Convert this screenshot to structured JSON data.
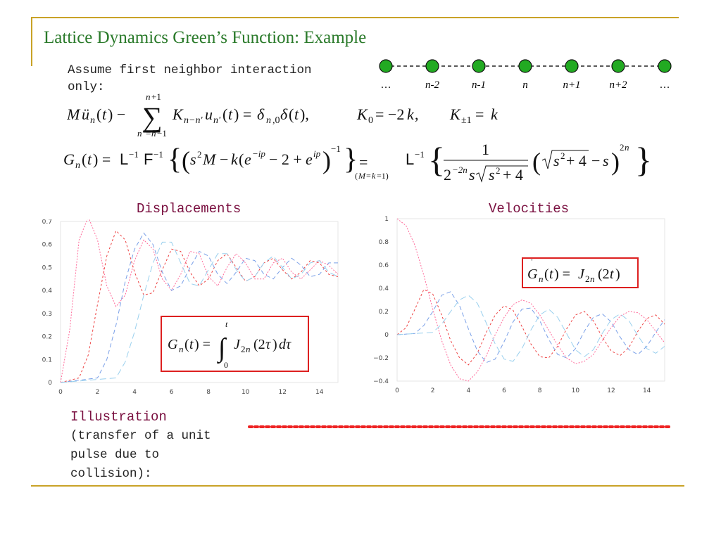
{
  "title": "Lattice Dynamics Green’s Function: Example",
  "assumption": {
    "line1": "Assume first neighbor interaction",
    "line2": "only:"
  },
  "chain": {
    "labels": [
      "…",
      "n-2",
      "n-1",
      "n",
      "n+1",
      "n+2",
      "…"
    ],
    "node_color": "#22aa22"
  },
  "displacements": {
    "heading": "Displacements",
    "chart_data": {
      "type": "line",
      "xlim": [
        0,
        15
      ],
      "ylim": [
        0,
        0.7
      ],
      "x_ticks": [
        "0",
        "2",
        "4",
        "6",
        "8",
        "10",
        "12",
        "14"
      ],
      "y_ticks": [
        "0",
        "0.1",
        "0.2",
        "0.3",
        "0.4",
        "0.5",
        "0.6",
        "0.7"
      ],
      "grid": false,
      "series": [
        {
          "values": [
            [
              0,
              0
            ],
            [
              0.5,
              0.23
            ],
            [
              1.0,
              0.62
            ],
            [
              1.5,
              0.72
            ],
            [
              2.0,
              0.62
            ],
            [
              2.5,
              0.42
            ],
            [
              3.0,
              0.33
            ],
            [
              3.5,
              0.38
            ],
            [
              4.0,
              0.53
            ],
            [
              4.5,
              0.62
            ],
            [
              5.0,
              0.58
            ],
            [
              5.5,
              0.45
            ],
            [
              6.0,
              0.4
            ],
            [
              6.5,
              0.47
            ],
            [
              7.0,
              0.57
            ],
            [
              7.5,
              0.56
            ],
            [
              8.0,
              0.46
            ],
            [
              8.5,
              0.42
            ],
            [
              9.0,
              0.5
            ],
            [
              9.5,
              0.56
            ],
            [
              10.0,
              0.52
            ],
            [
              10.5,
              0.45
            ],
            [
              11.0,
              0.45
            ],
            [
              11.5,
              0.52
            ],
            [
              12.0,
              0.54
            ],
            [
              12.5,
              0.48
            ],
            [
              13.0,
              0.45
            ],
            [
              13.5,
              0.49
            ],
            [
              14.0,
              0.53
            ],
            [
              14.5,
              0.51
            ],
            [
              15.0,
              0.47
            ]
          ]
        },
        {
          "values": [
            [
              0,
              0
            ],
            [
              1.0,
              0.02
            ],
            [
              1.5,
              0.12
            ],
            [
              2.0,
              0.34
            ],
            [
              2.5,
              0.55
            ],
            [
              3.0,
              0.66
            ],
            [
              3.5,
              0.62
            ],
            [
              4.0,
              0.48
            ],
            [
              4.5,
              0.38
            ],
            [
              5.0,
              0.39
            ],
            [
              5.5,
              0.49
            ],
            [
              6.0,
              0.58
            ],
            [
              6.5,
              0.57
            ],
            [
              7.0,
              0.48
            ],
            [
              7.5,
              0.42
            ],
            [
              8.0,
              0.45
            ],
            [
              8.5,
              0.53
            ],
            [
              9.0,
              0.56
            ],
            [
              9.5,
              0.5
            ],
            [
              10.0,
              0.44
            ],
            [
              10.5,
              0.46
            ],
            [
              11.0,
              0.52
            ],
            [
              11.5,
              0.54
            ],
            [
              12.0,
              0.49
            ],
            [
              12.5,
              0.45
            ],
            [
              13.0,
              0.48
            ],
            [
              13.5,
              0.53
            ],
            [
              14.0,
              0.52
            ],
            [
              14.5,
              0.47
            ],
            [
              15.0,
              0.46
            ]
          ]
        },
        {
          "values": [
            [
              0,
              0
            ],
            [
              2.0,
              0.02
            ],
            [
              2.5,
              0.1
            ],
            [
              3.0,
              0.25
            ],
            [
              3.5,
              0.44
            ],
            [
              4.0,
              0.58
            ],
            [
              4.5,
              0.65
            ],
            [
              5.0,
              0.6
            ],
            [
              5.5,
              0.48
            ],
            [
              6.0,
              0.4
            ],
            [
              6.5,
              0.42
            ],
            [
              7.0,
              0.5
            ],
            [
              7.5,
              0.57
            ],
            [
              8.0,
              0.55
            ],
            [
              8.5,
              0.47
            ],
            [
              9.0,
              0.43
            ],
            [
              9.5,
              0.48
            ],
            [
              10.0,
              0.54
            ],
            [
              10.5,
              0.53
            ],
            [
              11.0,
              0.47
            ],
            [
              11.5,
              0.45
            ],
            [
              12.0,
              0.5
            ],
            [
              12.5,
              0.54
            ],
            [
              13.0,
              0.51
            ],
            [
              13.5,
              0.46
            ],
            [
              14.0,
              0.47
            ],
            [
              14.5,
              0.52
            ],
            [
              15.0,
              0.52
            ]
          ]
        },
        {
          "values": [
            [
              0,
              0
            ],
            [
              3.0,
              0.02
            ],
            [
              3.5,
              0.09
            ],
            [
              4.0,
              0.22
            ],
            [
              4.5,
              0.38
            ],
            [
              5.0,
              0.52
            ],
            [
              5.5,
              0.61
            ],
            [
              6.0,
              0.61
            ],
            [
              6.5,
              0.52
            ],
            [
              7.0,
              0.43
            ],
            [
              7.5,
              0.42
            ],
            [
              8.0,
              0.49
            ],
            [
              8.5,
              0.56
            ],
            [
              9.0,
              0.56
            ],
            [
              9.5,
              0.49
            ],
            [
              10.0,
              0.44
            ],
            [
              10.5,
              0.46
            ],
            [
              11.0,
              0.52
            ],
            [
              11.5,
              0.55
            ],
            [
              12.0,
              0.5
            ],
            [
              12.5,
              0.45
            ],
            [
              13.0,
              0.47
            ],
            [
              13.5,
              0.52
            ],
            [
              14.0,
              0.53
            ],
            [
              14.5,
              0.48
            ],
            [
              15.0,
              0.46
            ]
          ]
        }
      ]
    },
    "formula_box": "G_n(t) = ∫_0^t J_2n(2τ) dτ"
  },
  "velocities": {
    "heading": "Velocities",
    "chart_data": {
      "type": "line",
      "xlim": [
        0,
        15
      ],
      "ylim": [
        -0.4,
        1
      ],
      "x_ticks": [
        "0",
        "2",
        "4",
        "6",
        "8",
        "10",
        "12",
        "14"
      ],
      "y_ticks": [
        "1",
        "0.8",
        "0.6",
        "0.4",
        "0.2",
        "0",
        "−0.2",
        "−0.4"
      ],
      "grid": false,
      "series": [
        {
          "values": [
            [
              0,
              1.0
            ],
            [
              0.5,
              0.94
            ],
            [
              1.0,
              0.77
            ],
            [
              1.5,
              0.51
            ],
            [
              2.0,
              0.22
            ],
            [
              2.5,
              -0.05
            ],
            [
              3.0,
              -0.26
            ],
            [
              3.5,
              -0.38
            ],
            [
              4.0,
              -0.4
            ],
            [
              4.5,
              -0.32
            ],
            [
              5.0,
              -0.18
            ],
            [
              5.5,
              0.0
            ],
            [
              6.0,
              0.15
            ],
            [
              6.5,
              0.26
            ],
            [
              7.0,
              0.3
            ],
            [
              7.5,
              0.27
            ],
            [
              8.0,
              0.17
            ],
            [
              8.5,
              0.04
            ],
            [
              9.0,
              -0.09
            ],
            [
              9.5,
              -0.2
            ],
            [
              10.0,
              -0.25
            ],
            [
              10.5,
              -0.23
            ],
            [
              11.0,
              -0.17
            ],
            [
              11.5,
              -0.05
            ],
            [
              12.0,
              0.06
            ],
            [
              12.5,
              0.16
            ],
            [
              13.0,
              0.2
            ],
            [
              13.5,
              0.19
            ],
            [
              14.0,
              0.13
            ],
            [
              14.5,
              0.03
            ],
            [
              15.0,
              -0.07
            ]
          ]
        },
        {
          "values": [
            [
              0,
              0
            ],
            [
              0.5,
              0.06
            ],
            [
              1.0,
              0.22
            ],
            [
              1.5,
              0.39
            ],
            [
              2.0,
              0.35
            ],
            [
              2.5,
              0.17
            ],
            [
              3.0,
              -0.05
            ],
            [
              3.5,
              -0.2
            ],
            [
              4.0,
              -0.26
            ],
            [
              4.5,
              -0.16
            ],
            [
              5.0,
              0.02
            ],
            [
              5.5,
              0.17
            ],
            [
              6.0,
              0.25
            ],
            [
              6.5,
              0.21
            ],
            [
              7.0,
              0.07
            ],
            [
              7.5,
              -0.08
            ],
            [
              8.0,
              -0.19
            ],
            [
              8.5,
              -0.2
            ],
            [
              9.0,
              -0.1
            ],
            [
              9.5,
              0.05
            ],
            [
              10.0,
              0.17
            ],
            [
              10.5,
              0.2
            ],
            [
              11.0,
              0.12
            ],
            [
              11.5,
              -0.02
            ],
            [
              12.0,
              -0.14
            ],
            [
              12.5,
              -0.18
            ],
            [
              13.0,
              -0.11
            ],
            [
              13.5,
              0.03
            ],
            [
              14.0,
              0.14
            ],
            [
              14.5,
              0.17
            ],
            [
              15.0,
              0.09
            ]
          ]
        },
        {
          "values": [
            [
              0,
              0
            ],
            [
              1.0,
              0.01
            ],
            [
              1.5,
              0.08
            ],
            [
              2.0,
              0.2
            ],
            [
              2.5,
              0.34
            ],
            [
              3.0,
              0.37
            ],
            [
              3.5,
              0.25
            ],
            [
              4.0,
              0.05
            ],
            [
              4.5,
              -0.14
            ],
            [
              5.0,
              -0.24
            ],
            [
              5.5,
              -0.21
            ],
            [
              6.0,
              -0.06
            ],
            [
              6.5,
              0.11
            ],
            [
              7.0,
              0.22
            ],
            [
              7.5,
              0.23
            ],
            [
              8.0,
              0.12
            ],
            [
              8.5,
              -0.04
            ],
            [
              9.0,
              -0.17
            ],
            [
              9.5,
              -0.2
            ],
            [
              10.0,
              -0.12
            ],
            [
              10.5,
              0.03
            ],
            [
              11.0,
              0.15
            ],
            [
              11.5,
              0.18
            ],
            [
              12.0,
              0.11
            ],
            [
              12.5,
              -0.02
            ],
            [
              13.0,
              -0.13
            ],
            [
              13.5,
              -0.17
            ],
            [
              14.0,
              -0.1
            ],
            [
              14.5,
              0.02
            ],
            [
              15.0,
              0.13
            ]
          ]
        },
        {
          "values": [
            [
              0,
              0
            ],
            [
              2.0,
              0.02
            ],
            [
              2.5,
              0.09
            ],
            [
              3.0,
              0.2
            ],
            [
              3.5,
              0.3
            ],
            [
              4.0,
              0.34
            ],
            [
              4.5,
              0.27
            ],
            [
              5.0,
              0.1
            ],
            [
              5.5,
              -0.08
            ],
            [
              6.0,
              -0.21
            ],
            [
              6.5,
              -0.23
            ],
            [
              7.0,
              -0.12
            ],
            [
              7.5,
              0.04
            ],
            [
              8.0,
              0.17
            ],
            [
              8.5,
              0.22
            ],
            [
              9.0,
              0.15
            ],
            [
              9.5,
              0.01
            ],
            [
              10.0,
              -0.13
            ],
            [
              10.5,
              -0.19
            ],
            [
              11.0,
              -0.13
            ],
            [
              11.5,
              0.01
            ],
            [
              12.0,
              0.13
            ],
            [
              12.5,
              0.18
            ],
            [
              13.0,
              0.12
            ],
            [
              13.5,
              -0.01
            ],
            [
              14.0,
              -0.12
            ],
            [
              14.5,
              -0.16
            ],
            [
              15.0,
              -0.1
            ]
          ]
        }
      ]
    },
    "formula_box": "Ġ_n(t) = J_2n(2t)"
  },
  "illustration": {
    "title": "Illustration",
    "line1": "(transfer of a unit",
    "line2": "pulse due to",
    "line3": "collision):"
  },
  "colors": {
    "title": "#2a7a2a",
    "heading": "#7a1040",
    "rule": "#c9a227",
    "box_border": "#dd2020",
    "series": [
      "#ff6a9a",
      "#ee4444",
      "#7aa0e8",
      "#9ad0ee"
    ]
  }
}
